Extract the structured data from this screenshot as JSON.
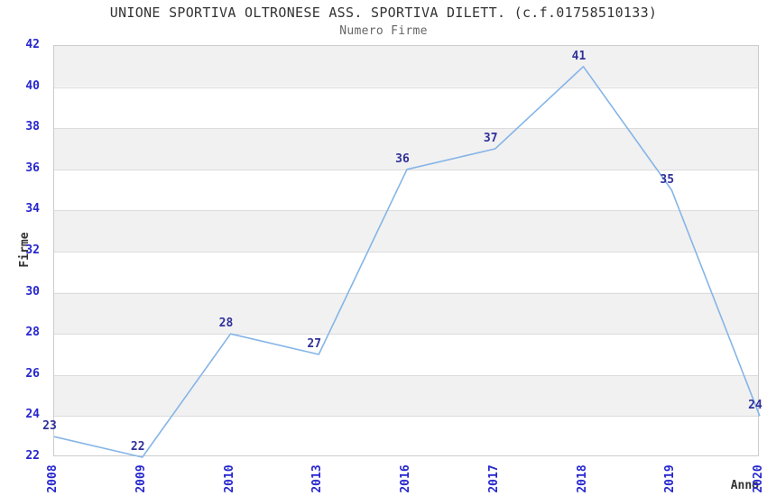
{
  "header": {
    "title": "UNIONE SPORTIVA OLTRONESE ASS. SPORTIVA DILETT. (c.f.01758510133)",
    "subtitle": "Numero Firme"
  },
  "chart_data": {
    "type": "line",
    "title": "UNIONE SPORTIVA OLTRONESE ASS. SPORTIVA DILETT. (c.f.01758510133)",
    "subtitle": "Numero Firme",
    "categories": [
      "2008",
      "2009",
      "2010",
      "2013",
      "2016",
      "2017",
      "2018",
      "2019",
      "2020"
    ],
    "values": [
      23,
      22,
      28,
      27,
      36,
      37,
      41,
      35,
      24
    ],
    "xlabel": "Anno",
    "ylabel": "Firme",
    "ylim": [
      22,
      42
    ],
    "yticks": [
      22,
      24,
      26,
      28,
      30,
      32,
      34,
      36,
      38,
      40,
      42
    ],
    "grid": "horizontal-bands-alternating",
    "legend_position": "none",
    "point_markers": "none",
    "colors": {
      "line": "#85b5e7",
      "tick_label": "#2626cf",
      "data_label": "#31319b",
      "band": "#f1f1f1",
      "plot_border": "#cccccc",
      "gridline": "#dcdcdc",
      "title": "#333333",
      "subtitle": "#666666",
      "axis_label": "#333333",
      "background": "#ffffff"
    }
  }
}
